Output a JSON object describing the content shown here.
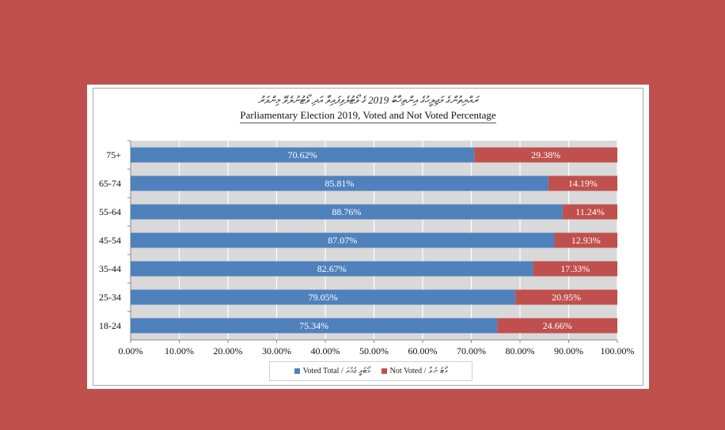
{
  "chart_data": {
    "type": "bar",
    "orientation": "horizontal",
    "stacked": true,
    "title_dhivehi": "ރައްޔިތުންގެ މަޖިލީހުގެ އިންތިޚާބު 2019 ގެ ވޯޓުލެވިފައިވާ އަދި ވޯޓުނުލެވޭ މިންވަރު",
    "title": "Parliamentary Election 2019, Voted and Not Voted Percentage",
    "categories": [
      "75+",
      "65-74",
      "55-64",
      "45-54",
      "35-44",
      "25-34",
      "18-24"
    ],
    "series": [
      {
        "name": "Voted Total / ވޯޓުލީ ޖުމްލަ",
        "color": "#4f81bd",
        "values": [
          70.62,
          85.81,
          88.76,
          87.07,
          82.67,
          79.05,
          75.34
        ],
        "labels": [
          "70.62%",
          "85.81%",
          "88.76%",
          "87.07%",
          "82.67%",
          "79.05%",
          "75.34%"
        ]
      },
      {
        "name": "Not Voted / ވޯޓު ނުލާ",
        "color": "#c0504d",
        "values": [
          29.38,
          14.19,
          11.24,
          12.93,
          17.33,
          20.95,
          24.66
        ],
        "labels": [
          "29.38%",
          "14.19%",
          "11.24%",
          "12.93%",
          "17.33%",
          "20.95%",
          "24.66%"
        ]
      }
    ],
    "xlim": [
      0,
      100
    ],
    "xticks": [
      "0.00%",
      "10.00%",
      "20.00%",
      "30.00%",
      "40.00%",
      "50.00%",
      "60.00%",
      "70.00%",
      "80.00%",
      "90.00%",
      "100.00%"
    ],
    "grid": true,
    "plot_background": "#d9d9d9",
    "legend_position": "bottom"
  },
  "page_background": "#c0504d"
}
